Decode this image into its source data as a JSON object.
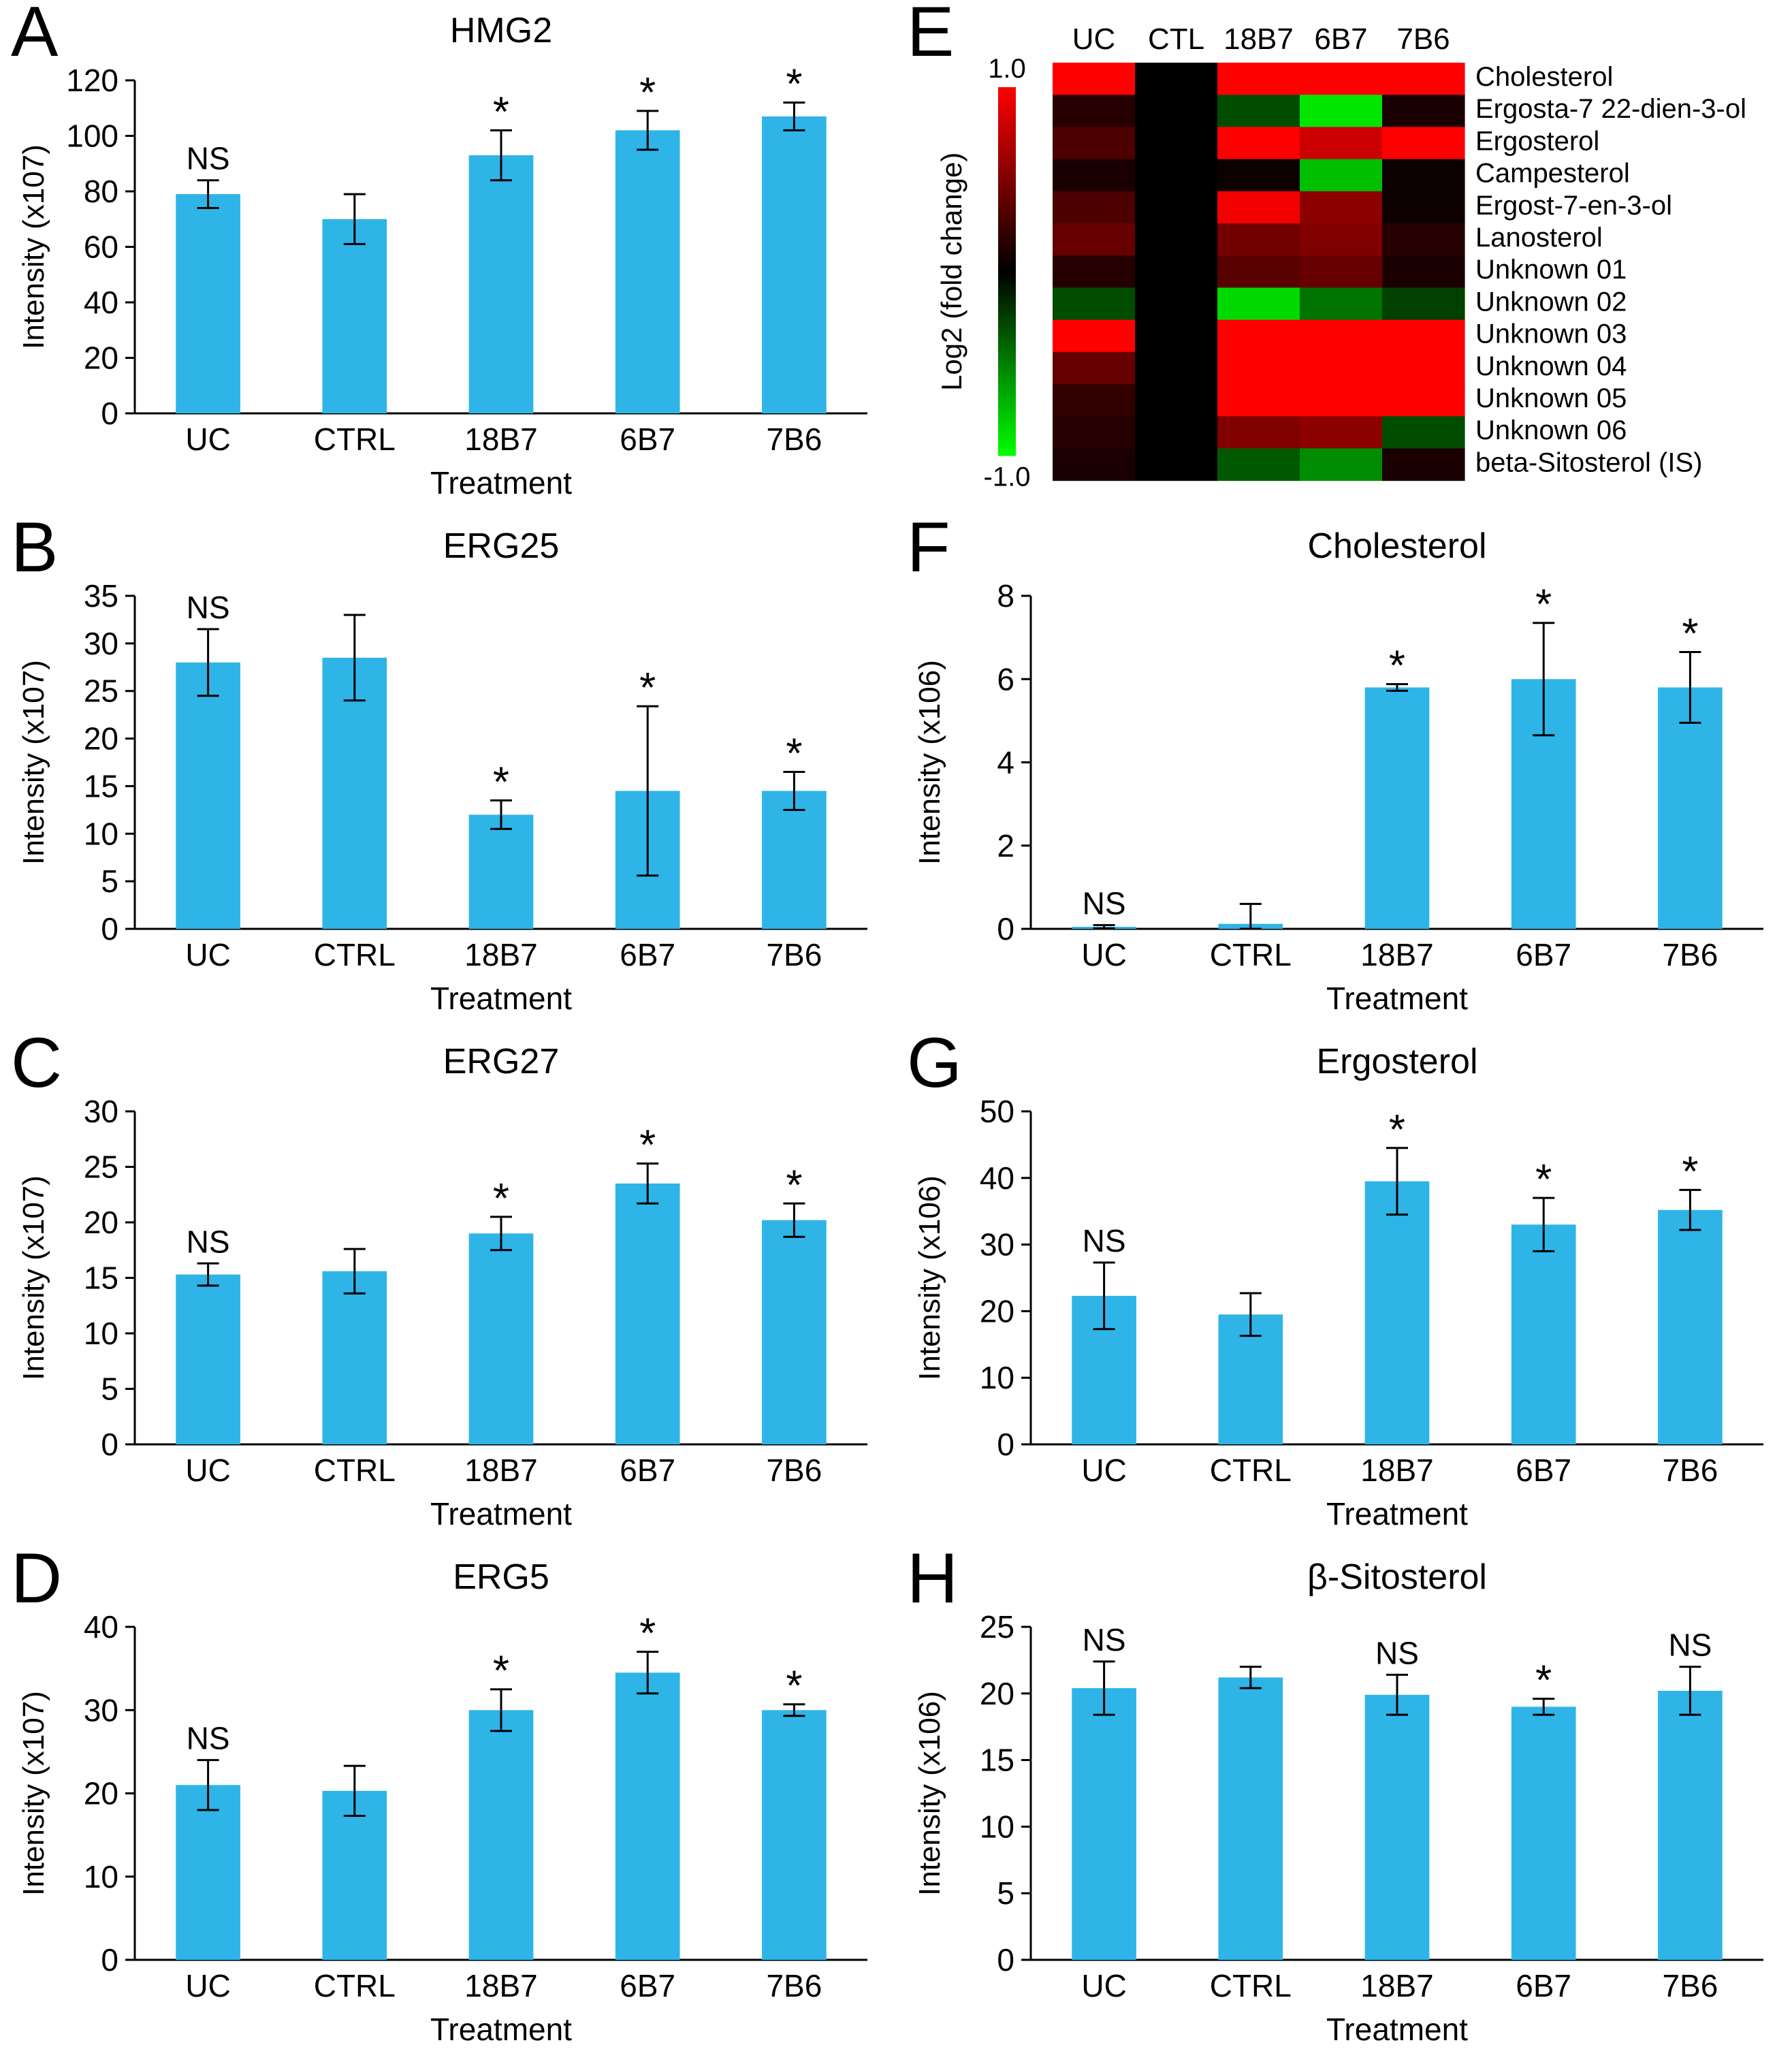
{
  "style": {
    "bar_color": "#2fb4e8",
    "axis_color": "#000000",
    "error_color": "#000000",
    "text_color": "#000000",
    "heatmap_max_color": "#ff0000",
    "heatmap_mid_color": "#000000",
    "heatmap_min_color": "#00ff00"
  },
  "chart_data": [
    {
      "type": "bar",
      "panel": "A",
      "title": "HMG2",
      "ylabel": "Intensity (x107)",
      "xlabel": "Treatment",
      "ylim": [
        0,
        120
      ],
      "ytick_step": 20,
      "categories": [
        "UC",
        "CTRL",
        "18B7",
        "6B7",
        "7B6"
      ],
      "values": [
        79,
        70,
        93,
        102,
        107
      ],
      "errors": [
        5,
        9,
        9,
        7,
        5
      ],
      "annotations": [
        "NS",
        "",
        "*",
        "*",
        "*"
      ],
      "grid": false,
      "legend": "none"
    },
    {
      "type": "bar",
      "panel": "B",
      "title": "ERG25",
      "ylabel": "Intensity (x107)",
      "xlabel": "Treatment",
      "ylim": [
        0,
        35
      ],
      "ytick_step": 5,
      "categories": [
        "UC",
        "CTRL",
        "18B7",
        "6B7",
        "7B6"
      ],
      "values": [
        28,
        28.5,
        12,
        14.5,
        14.5
      ],
      "errors": [
        3.5,
        4.5,
        1.5,
        8.9,
        2
      ],
      "annotations": [
        "NS",
        "",
        "*",
        "*",
        "*"
      ],
      "grid": false,
      "legend": "none"
    },
    {
      "type": "bar",
      "panel": "C",
      "title": "ERG27",
      "ylabel": "Intensity (x107)",
      "xlabel": "Treatment",
      "ylim": [
        0,
        30
      ],
      "ytick_step": 5,
      "categories": [
        "UC",
        "CTRL",
        "18B7",
        "6B7",
        "7B6"
      ],
      "values": [
        15.3,
        15.6,
        19,
        23.5,
        20.2
      ],
      "errors": [
        1,
        2,
        1.5,
        1.8,
        1.5
      ],
      "annotations": [
        "NS",
        "",
        "*",
        "*",
        "*"
      ],
      "grid": false,
      "legend": "none"
    },
    {
      "type": "bar",
      "panel": "D",
      "title": "ERG5",
      "ylabel": "Intensity (x107)",
      "xlabel": "Treatment",
      "ylim": [
        0,
        40
      ],
      "ytick_step": 10,
      "categories": [
        "UC",
        "CTRL",
        "18B7",
        "6B7",
        "7B6"
      ],
      "values": [
        21,
        20.3,
        30,
        34.5,
        30
      ],
      "errors": [
        3,
        3,
        2.5,
        2.5,
        0.7
      ],
      "annotations": [
        "NS",
        "",
        "*",
        "*",
        "*"
      ],
      "grid": false,
      "legend": "none"
    },
    {
      "type": "heatmap",
      "panel": "E",
      "columns": [
        "UC",
        "CTL",
        "18B7",
        "6B7",
        "7B6"
      ],
      "rows": [
        "Cholesterol",
        "Ergosta-7 22-dien-3-ol",
        "Ergosterol",
        "Campesterol",
        "Ergost-7-en-3-ol",
        "Lanosterol",
        "Unknown 01",
        "Unknown 02",
        "Unknown 03",
        "Unknown 04",
        "Unknown 05",
        "Unknown 06",
        "beta-Sitosterol (IS)"
      ],
      "values": [
        [
          1.0,
          0,
          1.0,
          1.0,
          1.0
        ],
        [
          0.15,
          0,
          -0.3,
          -0.9,
          0.1
        ],
        [
          0.3,
          0,
          1.0,
          0.8,
          1.0
        ],
        [
          0.1,
          0,
          0.05,
          -0.75,
          0.05
        ],
        [
          0.3,
          0,
          0.95,
          0.55,
          0.05
        ],
        [
          0.4,
          0,
          0.45,
          0.5,
          0.15
        ],
        [
          0.15,
          0,
          0.35,
          0.4,
          0.1
        ],
        [
          -0.3,
          0,
          -0.85,
          -0.45,
          -0.25
        ],
        [
          1.0,
          0,
          1.0,
          1.0,
          1.0
        ],
        [
          0.4,
          0,
          1.0,
          1.0,
          1.0
        ],
        [
          0.2,
          0,
          1.0,
          1.0,
          1.0
        ],
        [
          0.15,
          0,
          0.5,
          0.55,
          -0.3
        ],
        [
          0.1,
          0,
          -0.35,
          -0.55,
          0.1
        ]
      ],
      "colorbar": {
        "label": "Log2 (fold change)",
        "max_label": "1.0",
        "min_label": "-1.0",
        "range": [
          -1.0,
          1.0
        ]
      }
    },
    {
      "type": "bar",
      "panel": "F",
      "title": "Cholesterol",
      "ylabel": "Intensity (x106)",
      "xlabel": "Treatment",
      "ylim": [
        0,
        8
      ],
      "ytick_step": 2,
      "categories": [
        "UC",
        "CTRL",
        "18B7",
        "6B7",
        "7B6"
      ],
      "values": [
        0.05,
        0.12,
        5.8,
        6.0,
        5.8
      ],
      "errors": [
        0.04,
        0.48,
        0.08,
        1.35,
        0.85
      ],
      "annotations": [
        "NS",
        "",
        "*",
        "*",
        "*"
      ],
      "grid": false,
      "legend": "none"
    },
    {
      "type": "bar",
      "panel": "G",
      "title": "Ergosterol",
      "ylabel": "Intensity (x106)",
      "xlabel": "Treatment",
      "ylim": [
        0,
        50
      ],
      "ytick_step": 10,
      "categories": [
        "UC",
        "CTRL",
        "18B7",
        "6B7",
        "7B6"
      ],
      "values": [
        22.3,
        19.5,
        39.5,
        33,
        35.2
      ],
      "errors": [
        5,
        3.2,
        5,
        4,
        3
      ],
      "annotations": [
        "NS",
        "",
        "*",
        "*",
        "*"
      ],
      "grid": false,
      "legend": "none"
    },
    {
      "type": "bar",
      "panel": "H",
      "title": "β-Sitosterol",
      "ylabel": "Intensity (x106)",
      "xlabel": "Treatment",
      "ylim": [
        0,
        25
      ],
      "ytick_step": 5,
      "categories": [
        "UC",
        "CTRL",
        "18B7",
        "6B7",
        "7B6"
      ],
      "values": [
        20.4,
        21.2,
        19.9,
        19,
        20.2
      ],
      "errors": [
        2,
        0.8,
        1.5,
        0.6,
        1.8
      ],
      "annotations": [
        "NS",
        "",
        "NS",
        "*",
        "NS"
      ],
      "grid": false,
      "legend": "none"
    }
  ]
}
